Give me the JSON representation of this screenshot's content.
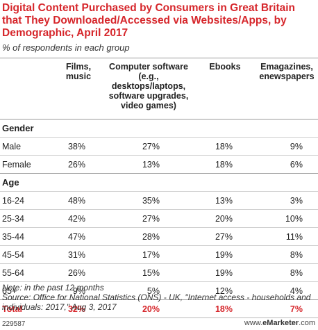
{
  "header": {
    "title": "Digital Content Purchased by Consumers in Great Britain that They Downloaded/Accessed via Websites/Apps, by Demographic, April 2017",
    "subtitle": "% of respondents in each group"
  },
  "chart_data": {
    "type": "table",
    "columns": [
      "",
      "Films, music",
      "Computer software (e.g., desktops/laptops, software upgrades, video games)",
      "Ebooks",
      "Emagazines, enewspapers"
    ],
    "sections": [
      {
        "name": "Gender",
        "rows": [
          {
            "label": "Male",
            "values": [
              "38%",
              "27%",
              "18%",
              "9%"
            ]
          },
          {
            "label": "Female",
            "values": [
              "26%",
              "13%",
              "18%",
              "6%"
            ]
          }
        ]
      },
      {
        "name": "Age",
        "rows": [
          {
            "label": "16-24",
            "values": [
              "48%",
              "35%",
              "13%",
              "3%"
            ]
          },
          {
            "label": "25-34",
            "values": [
              "42%",
              "27%",
              "20%",
              "10%"
            ]
          },
          {
            "label": "35-44",
            "values": [
              "47%",
              "28%",
              "27%",
              "11%"
            ]
          },
          {
            "label": "45-54",
            "values": [
              "31%",
              "17%",
              "19%",
              "8%"
            ]
          },
          {
            "label": "55-64",
            "values": [
              "26%",
              "15%",
              "19%",
              "8%"
            ]
          },
          {
            "label": "65+",
            "values": [
              "9%",
              "5%",
              "12%",
              "4%"
            ]
          }
        ]
      }
    ],
    "total": {
      "label": "Total",
      "values": [
        "32%",
        "20%",
        "18%",
        "7%"
      ]
    }
  },
  "notes": {
    "note": "Note: in the past 12 months",
    "source": "Source: Office for National Statistics (ONS) - UK, \"Internet access - households and individuals: 2017,\" Aug 3, 2017"
  },
  "footer": {
    "id": "229587",
    "brand_prefix": "www.",
    "brand_name": "eMarketer",
    "brand_suffix": ".com"
  },
  "colors": {
    "accent": "#d6262b"
  }
}
